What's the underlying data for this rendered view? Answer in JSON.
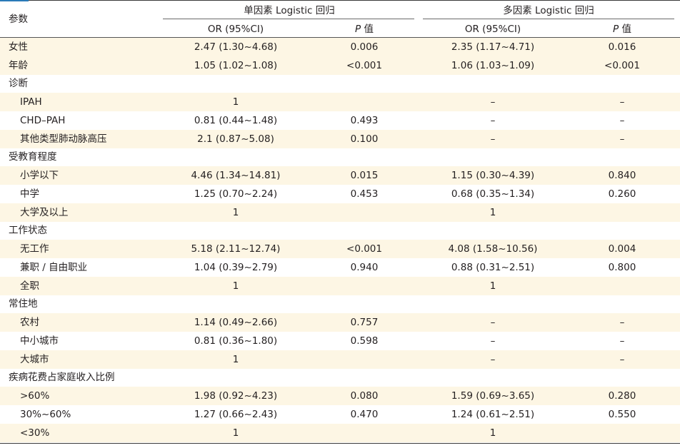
{
  "header": {
    "param": "参数",
    "uni_group": "单因素 Logistic 回归",
    "multi_group": "多因素 Logistic 回归",
    "or_label": "OR (95%CI)",
    "p_italic": "P",
    "p_suffix": " 值"
  },
  "rows": [
    {
      "label": "女性",
      "uni_or": "2.47 (1.30~4.68)",
      "uni_p": "0.006",
      "multi_or": "2.35 (1.17~4.71)",
      "multi_p": "0.016"
    },
    {
      "label": "年龄",
      "uni_or": "1.05 (1.02~1.08)",
      "uni_p": "<0.001",
      "multi_or": "1.06 (1.03~1.09)",
      "multi_p": "<0.001"
    },
    {
      "label": "诊断",
      "uni_or": "",
      "uni_p": "",
      "multi_or": "",
      "multi_p": ""
    },
    {
      "label": "IPAH",
      "uni_or": "1",
      "uni_p": "",
      "multi_or": "–",
      "multi_p": "–"
    },
    {
      "label": "CHD–PAH",
      "uni_or": "0.81 (0.44~1.48)",
      "uni_p": "0.493",
      "multi_or": "–",
      "multi_p": "–"
    },
    {
      "label": "其他类型肺动脉高压",
      "uni_or": "2.1 (0.87~5.08)",
      "uni_p": "0.100",
      "multi_or": "–",
      "multi_p": "–"
    },
    {
      "label": "受教育程度",
      "uni_or": "",
      "uni_p": "",
      "multi_or": "",
      "multi_p": ""
    },
    {
      "label": "小学以下",
      "uni_or": "4.46 (1.34~14.81)",
      "uni_p": "0.015",
      "multi_or": "1.15 (0.30~4.39)",
      "multi_p": "0.840"
    },
    {
      "label": "中学",
      "uni_or": "1.25 (0.70~2.24)",
      "uni_p": "0.453",
      "multi_or": "0.68 (0.35~1.34)",
      "multi_p": "0.260"
    },
    {
      "label": "大学及以上",
      "uni_or": "1",
      "uni_p": "",
      "multi_or": "1",
      "multi_p": ""
    },
    {
      "label": "工作状态",
      "uni_or": "",
      "uni_p": "",
      "multi_or": "",
      "multi_p": ""
    },
    {
      "label": "无工作",
      "uni_or": "5.18 (2.11~12.74)",
      "uni_p": "<0.001",
      "multi_or": "4.08 (1.58~10.56)",
      "multi_p": "0.004"
    },
    {
      "label": "兼职 / 自由职业",
      "uni_or": "1.04 (0.39~2.79)",
      "uni_p": "0.940",
      "multi_or": "0.88 (0.31~2.51)",
      "multi_p": "0.800"
    },
    {
      "label": "全职",
      "uni_or": "1",
      "uni_p": "",
      "multi_or": "1",
      "multi_p": ""
    },
    {
      "label": "常住地",
      "uni_or": "",
      "uni_p": "",
      "multi_or": "",
      "multi_p": ""
    },
    {
      "label": "农村",
      "uni_or": "1.14 (0.49~2.66)",
      "uni_p": "0.757",
      "multi_or": "–",
      "multi_p": "–"
    },
    {
      "label": "中小城市",
      "uni_or": "0.81 (0.36~1.80)",
      "uni_p": "0.598",
      "multi_or": "–",
      "multi_p": "–"
    },
    {
      "label": "大城市",
      "uni_or": "1",
      "uni_p": "",
      "multi_or": "–",
      "multi_p": "–"
    },
    {
      "label": "疾病花费占家庭收入比例",
      "uni_or": "",
      "uni_p": "",
      "multi_or": "",
      "multi_p": ""
    },
    {
      "label": ">60%",
      "uni_or": "1.98 (0.92~4.23)",
      "uni_p": "0.080",
      "multi_or": "1.59 (0.69~3.65)",
      "multi_p": "0.280"
    },
    {
      "label": "30%~60%",
      "uni_or": "1.27 (0.66~2.43)",
      "uni_p": "0.470",
      "multi_or": "1.24 (0.61~2.51)",
      "multi_p": "0.550"
    },
    {
      "label": "<30%",
      "uni_or": "1",
      "uni_p": "",
      "multi_or": "1",
      "multi_p": ""
    }
  ]
}
